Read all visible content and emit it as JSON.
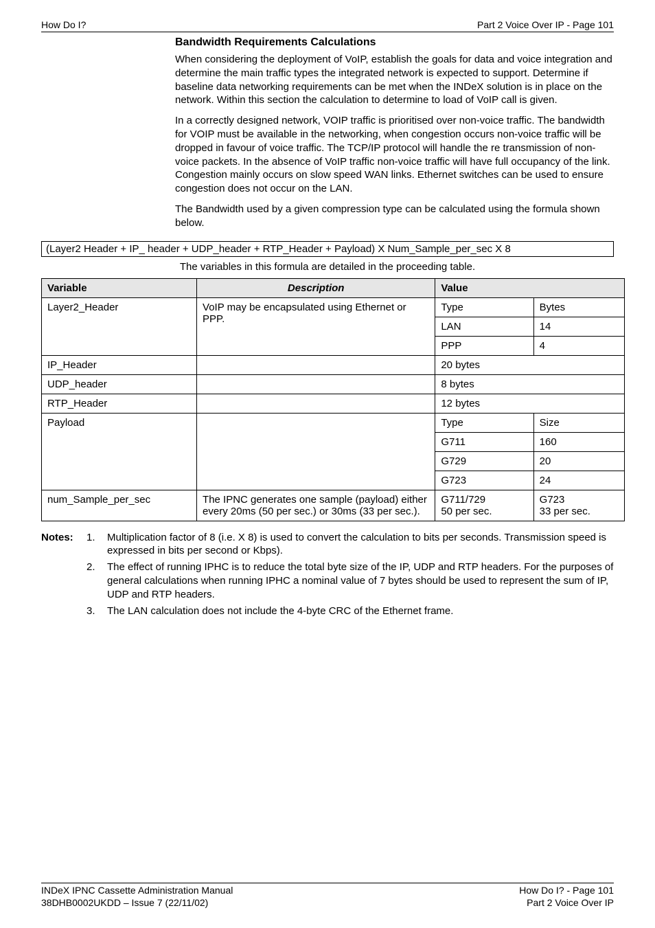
{
  "header": {
    "left": "How Do I?",
    "right": "Part 2 Voice Over IP - Page 101"
  },
  "section_heading": "Bandwidth Requirements Calculations",
  "para1": "When considering the deployment of VoIP, establish the goals for data and voice integration and determine the main traffic types the integrated network is expected to support. Determine if baseline data networking requirements can be met when the INDeX solution is in place on the network. Within this section the calculation to determine to load of VoIP call is given.",
  "para2": "In a correctly designed network, VOIP traffic is prioritised over non-voice traffic. The bandwidth for VOIP must be available in the networking, when congestion occurs non-voice traffic will be dropped in favour of voice traffic. The TCP/IP protocol will handle the re transmission of non-voice packets. In the absence of VoIP traffic non-voice traffic will have full occupancy of the link. Congestion mainly occurs on slow speed WAN links. Ethernet switches can be used to ensure congestion does not occur on the LAN.",
  "para3": "The Bandwidth used by a given compression type can be calculated using the formula shown below.",
  "formula": "(Layer2 Header + IP_ header + UDP_header + RTP_Header + Payload) X Num_Sample_per_sec X 8",
  "table_intro": "The variables in this formula are detailed in the proceeding table.",
  "table": {
    "head": {
      "c1": "Variable",
      "c2": "Description",
      "c3": "Value"
    },
    "layer2": {
      "var": "Layer2_Header",
      "desc": "VoIP may be encapsulated using Ethernet or PPP.",
      "r1a": "Type",
      "r1b": "Bytes",
      "r2a": "LAN",
      "r2b": "14",
      "r3a": "PPP",
      "r3b": "4"
    },
    "ip": {
      "var": "IP_Header",
      "val": "20 bytes"
    },
    "udp": {
      "var": "UDP_header",
      "val": "8 bytes"
    },
    "rtp": {
      "var": "RTP_Header",
      "val": "12 bytes"
    },
    "payload": {
      "var": "Payload",
      "r1a": "Type",
      "r1b": "Size",
      "r2a": "G711",
      "r2b": "160",
      "r3a": "G729",
      "r3b": "20",
      "r4a": "G723",
      "r4b": "24"
    },
    "numsample": {
      "var": "num_Sample_per_sec",
      "desc": "The IPNC generates one sample (payload) either every 20ms (50 per sec.) or 30ms (33 per sec.).",
      "va": "G711/729\n50 per sec.",
      "vb": "G723\n33 per sec."
    }
  },
  "notes": {
    "label": "Notes:",
    "n1_num": "1.",
    "n1_txt": "Multiplication factor of 8 (i.e. X 8) is used to convert the calculation to bits per seconds. Transmission speed is expressed in bits per second or Kbps).",
    "n2_num": "2.",
    "n2_txt": "The effect of running IPHC is to reduce the total byte size of the IP, UDP and RTP headers. For the purposes of general calculations when running IPHC a nominal value of 7 bytes should be used to represent the sum of IP, UDP and RTP headers.",
    "n3_num": "3.",
    "n3_txt": "The LAN calculation does not include the 4-byte CRC of the Ethernet frame."
  },
  "footer": {
    "left1": "INDeX IPNC Cassette Administration Manual",
    "left2": "38DHB0002UKDD – Issue 7 (22/11/02)",
    "right1": "How Do I? - Page 101",
    "right2": "Part 2 Voice Over IP"
  }
}
